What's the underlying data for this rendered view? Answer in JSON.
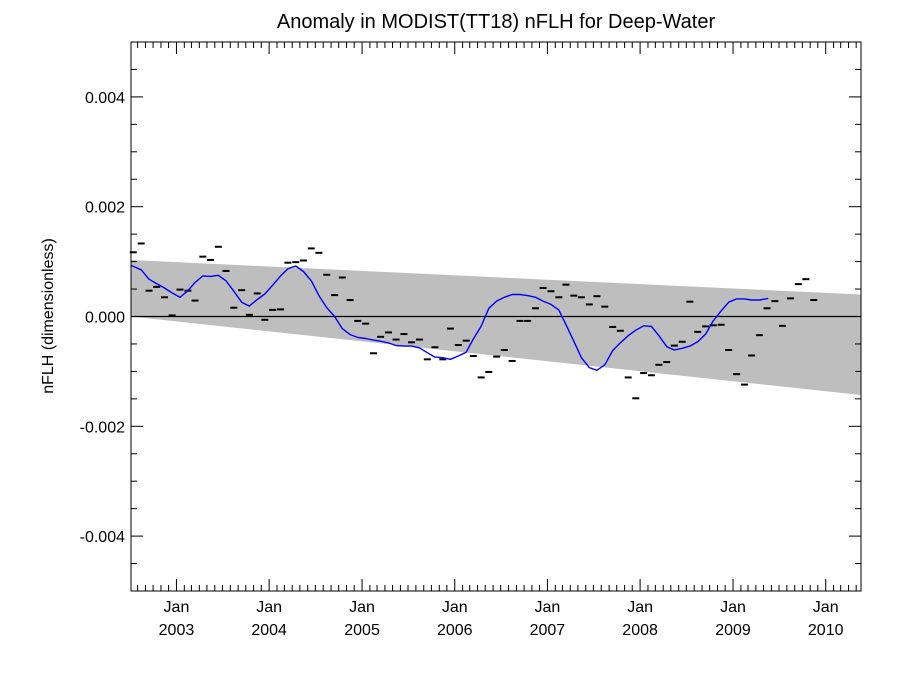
{
  "chart_data": {
    "type": "line",
    "title": "Anomaly in MODIST(TT18) nFLH for Deep-Water",
    "xlabel": "",
    "ylabel": "nFLH (dimensionless)",
    "xlim": [
      "2002-07-06",
      "2010-05-20"
    ],
    "ylim": [
      -0.005,
      0.005
    ],
    "grid": false,
    "y_ticks": [
      {
        "value": 0.004,
        "label": "0.004"
      },
      {
        "value": 0.002,
        "label": "0.002"
      },
      {
        "value": 0.0,
        "label": "0.000"
      },
      {
        "value": -0.002,
        "label": "-0.002"
      },
      {
        "value": -0.004,
        "label": "-0.004"
      }
    ],
    "x_ticks": [
      {
        "date": "2003-01-01",
        "month": "Jan",
        "year": "2003"
      },
      {
        "date": "2004-01-01",
        "month": "Jan",
        "year": "2004"
      },
      {
        "date": "2005-01-01",
        "month": "Jan",
        "year": "2005"
      },
      {
        "date": "2006-01-01",
        "month": "Jan",
        "year": "2006"
      },
      {
        "date": "2007-01-01",
        "month": "Jan",
        "year": "2007"
      },
      {
        "date": "2008-01-01",
        "month": "Jan",
        "year": "2008"
      },
      {
        "date": "2009-01-01",
        "month": "Jan",
        "year": "2009"
      },
      {
        "date": "2010-01-01",
        "month": "Jan",
        "year": "2010"
      }
    ],
    "shaded_band": {
      "color": "#bebebe",
      "x": [
        "2002-07-06",
        "2010-05-20"
      ],
      "upper": [
        0.00103,
        0.0004
      ],
      "lower": [
        0.0,
        -0.00143
      ]
    },
    "zero_line": 0.0,
    "series": [
      {
        "kind": "monthly-anomaly-markers",
        "color": "#000000",
        "points": [
          [
            "2002-07-15",
            0.00117
          ],
          [
            "2002-08-15",
            0.00133
          ],
          [
            "2002-09-15",
            0.00047
          ],
          [
            "2002-10-15",
            0.00054
          ],
          [
            "2002-11-15",
            0.00035
          ],
          [
            "2002-12-15",
            2e-05
          ],
          [
            "2003-01-15",
            0.00049
          ],
          [
            "2003-02-15",
            0.00047
          ],
          [
            "2003-03-15",
            0.00029
          ],
          [
            "2003-04-15",
            0.00109
          ],
          [
            "2003-05-15",
            0.00103
          ],
          [
            "2003-06-15",
            0.00127
          ],
          [
            "2003-07-15",
            0.00083
          ],
          [
            "2003-08-15",
            0.00016
          ],
          [
            "2003-09-15",
            0.00048
          ],
          [
            "2003-10-15",
            3e-05
          ],
          [
            "2003-11-15",
            0.00042
          ],
          [
            "2003-12-15",
            -6e-05
          ],
          [
            "2004-01-15",
            0.00012
          ],
          [
            "2004-02-15",
            0.00013
          ],
          [
            "2004-03-15",
            0.00098
          ],
          [
            "2004-04-15",
            0.00099
          ],
          [
            "2004-05-15",
            0.00102
          ],
          [
            "2004-06-15",
            0.00124
          ],
          [
            "2004-07-15",
            0.00116
          ],
          [
            "2004-08-15",
            0.00076
          ],
          [
            "2004-09-15",
            0.00039
          ],
          [
            "2004-10-15",
            0.00071
          ],
          [
            "2004-11-15",
            0.0003
          ],
          [
            "2004-12-15",
            -8e-05
          ],
          [
            "2005-01-15",
            -0.00013
          ],
          [
            "2005-02-15",
            -0.00067
          ],
          [
            "2005-03-15",
            -0.00037
          ],
          [
            "2005-04-15",
            -0.00029
          ],
          [
            "2005-05-15",
            -0.00042
          ],
          [
            "2005-06-15",
            -0.00032
          ],
          [
            "2005-07-15",
            -0.00047
          ],
          [
            "2005-08-15",
            -0.00042
          ],
          [
            "2005-09-15",
            -0.00078
          ],
          [
            "2005-10-15",
            -0.00056
          ],
          [
            "2005-11-15",
            -0.00078
          ],
          [
            "2005-12-15",
            -0.00022
          ],
          [
            "2006-01-15",
            -0.00052
          ],
          [
            "2006-02-15",
            -0.00044
          ],
          [
            "2006-03-15",
            -0.00072
          ],
          [
            "2006-04-15",
            -0.00111
          ],
          [
            "2006-05-15",
            -0.00101
          ],
          [
            "2006-06-15",
            -0.00073
          ],
          [
            "2006-07-15",
            -0.00061
          ],
          [
            "2006-08-15",
            -0.00081
          ],
          [
            "2006-09-15",
            -8e-05
          ],
          [
            "2006-10-15",
            -8e-05
          ],
          [
            "2006-11-15",
            0.00015
          ],
          [
            "2006-12-15",
            0.00052
          ],
          [
            "2007-01-15",
            0.00046
          ],
          [
            "2007-02-15",
            0.00035
          ],
          [
            "2007-03-15",
            0.00058
          ],
          [
            "2007-04-15",
            0.00038
          ],
          [
            "2007-05-15",
            0.00035
          ],
          [
            "2007-06-15",
            0.00022
          ],
          [
            "2007-07-15",
            0.00037
          ],
          [
            "2007-08-15",
            0.00018
          ],
          [
            "2007-09-15",
            -0.00019
          ],
          [
            "2007-10-15",
            -0.00026
          ],
          [
            "2007-11-15",
            -0.00111
          ],
          [
            "2007-12-15",
            -0.00149
          ],
          [
            "2008-01-15",
            -0.00103
          ],
          [
            "2008-02-15",
            -0.00107
          ],
          [
            "2008-03-15",
            -0.00088
          ],
          [
            "2008-04-15",
            -0.00083
          ],
          [
            "2008-05-15",
            -0.00053
          ],
          [
            "2008-06-15",
            -0.00046
          ],
          [
            "2008-07-15",
            0.00027
          ],
          [
            "2008-08-15",
            -0.00028
          ],
          [
            "2008-09-15",
            -0.00018
          ],
          [
            "2008-10-15",
            -0.00016
          ],
          [
            "2008-11-15",
            -0.00015
          ],
          [
            "2008-12-15",
            -0.00061
          ],
          [
            "2009-01-15",
            -0.00105
          ],
          [
            "2009-02-15",
            -0.00124
          ],
          [
            "2009-03-15",
            -0.00071
          ],
          [
            "2009-04-15",
            -0.00034
          ],
          [
            "2009-05-15",
            0.00015
          ],
          [
            "2009-06-15",
            0.00028
          ],
          [
            "2009-07-15",
            -0.00017
          ],
          [
            "2009-08-15",
            0.00033
          ],
          [
            "2009-09-15",
            0.00059
          ],
          [
            "2009-10-15",
            0.00068
          ],
          [
            "2009-11-15",
            0.0003
          ]
        ]
      },
      {
        "kind": "smoothed-line",
        "color": "#0000ff",
        "points": [
          [
            "2002-07-06",
            0.00093
          ],
          [
            "2002-08-15",
            0.00085
          ],
          [
            "2002-09-15",
            0.00068
          ],
          [
            "2002-10-15",
            0.0006
          ],
          [
            "2002-11-15",
            0.00052
          ],
          [
            "2002-12-15",
            0.00043
          ],
          [
            "2003-01-15",
            0.00035
          ],
          [
            "2003-02-15",
            0.00047
          ],
          [
            "2003-03-15",
            0.00062
          ],
          [
            "2003-04-15",
            0.00074
          ],
          [
            "2003-05-15",
            0.00073
          ],
          [
            "2003-06-15",
            0.00075
          ],
          [
            "2003-07-15",
            0.00065
          ],
          [
            "2003-08-15",
            0.00046
          ],
          [
            "2003-09-15",
            0.00026
          ],
          [
            "2003-10-15",
            0.00019
          ],
          [
            "2003-11-15",
            0.00031
          ],
          [
            "2003-12-15",
            0.00041
          ],
          [
            "2004-01-15",
            0.00057
          ],
          [
            "2004-02-15",
            0.00074
          ],
          [
            "2004-03-15",
            0.00087
          ],
          [
            "2004-04-15",
            0.00092
          ],
          [
            "2004-05-15",
            0.00082
          ],
          [
            "2004-06-15",
            0.00065
          ],
          [
            "2004-07-15",
            0.00038
          ],
          [
            "2004-08-15",
            0.00016
          ],
          [
            "2004-09-15",
            0.0
          ],
          [
            "2004-10-15",
            -0.00022
          ],
          [
            "2004-11-15",
            -0.00033
          ],
          [
            "2004-12-15",
            -0.00038
          ],
          [
            "2005-01-15",
            -0.0004
          ],
          [
            "2005-02-15",
            -0.00043
          ],
          [
            "2005-03-15",
            -0.00045
          ],
          [
            "2005-04-15",
            -0.00048
          ],
          [
            "2005-05-15",
            -0.00053
          ],
          [
            "2005-06-15",
            -0.00054
          ],
          [
            "2005-07-15",
            -0.00054
          ],
          [
            "2005-08-15",
            -0.00057
          ],
          [
            "2005-09-15",
            -0.00066
          ],
          [
            "2005-10-15",
            -0.00074
          ],
          [
            "2005-11-15",
            -0.00075
          ],
          [
            "2005-12-15",
            -0.00078
          ],
          [
            "2006-01-15",
            -0.00072
          ],
          [
            "2006-02-15",
            -0.00065
          ],
          [
            "2006-03-15",
            -0.00041
          ],
          [
            "2006-04-15",
            -0.00018
          ],
          [
            "2006-05-15",
            0.00015
          ],
          [
            "2006-06-15",
            0.00028
          ],
          [
            "2006-07-15",
            0.00035
          ],
          [
            "2006-08-15",
            0.0004
          ],
          [
            "2006-09-15",
            0.0004
          ],
          [
            "2006-10-15",
            0.00038
          ],
          [
            "2006-11-15",
            0.00035
          ],
          [
            "2006-12-15",
            0.00028
          ],
          [
            "2007-01-15",
            0.00022
          ],
          [
            "2007-02-15",
            0.00012
          ],
          [
            "2007-03-15",
            -0.00015
          ],
          [
            "2007-04-15",
            -0.00045
          ],
          [
            "2007-05-15",
            -0.00075
          ],
          [
            "2007-06-15",
            -0.00093
          ],
          [
            "2007-07-15",
            -0.00098
          ],
          [
            "2007-08-15",
            -0.00088
          ],
          [
            "2007-09-15",
            -0.00062
          ],
          [
            "2007-10-15",
            -0.00048
          ],
          [
            "2007-11-15",
            -0.00035
          ],
          [
            "2007-12-15",
            -0.00025
          ],
          [
            "2008-01-15",
            -0.00017
          ],
          [
            "2008-02-15",
            -0.00018
          ],
          [
            "2008-03-15",
            -0.00035
          ],
          [
            "2008-04-15",
            -0.00055
          ],
          [
            "2008-05-15",
            -0.00061
          ],
          [
            "2008-06-15",
            -0.00058
          ],
          [
            "2008-07-15",
            -0.00054
          ],
          [
            "2008-08-15",
            -0.00046
          ],
          [
            "2008-09-15",
            -0.00032
          ],
          [
            "2008-10-15",
            -8e-05
          ],
          [
            "2008-11-15",
            0.0001
          ],
          [
            "2008-12-15",
            0.00026
          ],
          [
            "2009-01-15",
            0.00032
          ],
          [
            "2009-02-15",
            0.00032
          ],
          [
            "2009-03-15",
            0.0003
          ],
          [
            "2009-04-15",
            0.0003
          ],
          [
            "2009-05-20",
            0.00033
          ]
        ]
      }
    ]
  }
}
